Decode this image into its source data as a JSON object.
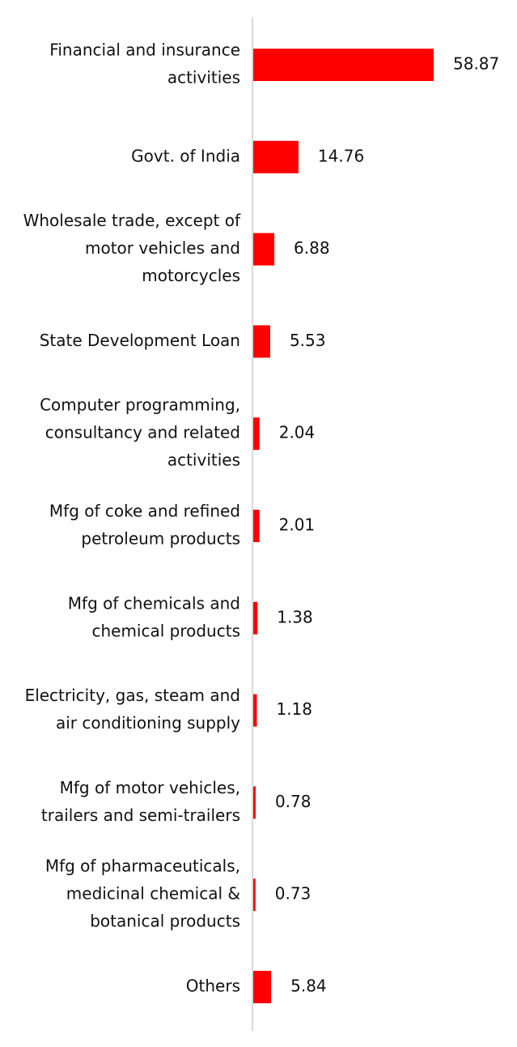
{
  "chart_data": {
    "type": "bar",
    "orientation": "horizontal",
    "title": "",
    "xlabel": "",
    "ylabel": "",
    "grid": false,
    "legend": "none",
    "bar_color": "#ff0000",
    "axis_color": "#d9d9d9",
    "xlim": [
      0,
      60
    ],
    "categories": [
      [
        "Financial and insurance",
        "activities"
      ],
      [
        "Govt. of India"
      ],
      [
        "Wholesale trade, except of",
        "motor vehicles and",
        "motorcycles"
      ],
      [
        "State Development Loan"
      ],
      [
        "Computer programming,",
        "consultancy and related",
        "activities"
      ],
      [
        "Mfg of coke and refined",
        "petroleum products"
      ],
      [
        "Mfg of chemicals and",
        "chemical products"
      ],
      [
        "Electricity, gas, steam and",
        "air conditioning supply"
      ],
      [
        "Mfg of motor vehicles,",
        "trailers and semi-trailers"
      ],
      [
        "Mfg of pharmaceuticals,",
        "medicinal chemical &",
        "botanical products"
      ],
      [
        "Others"
      ]
    ],
    "values": [
      58.87,
      14.76,
      6.88,
      5.53,
      2.04,
      2.01,
      1.38,
      1.18,
      0.78,
      0.73,
      5.84
    ],
    "value_labels": [
      "58.87",
      "14.76",
      "6.88",
      "5.53",
      "2.04",
      "2.01",
      "1.38",
      "1.18",
      "0.78",
      "0.73",
      "5.84"
    ]
  }
}
